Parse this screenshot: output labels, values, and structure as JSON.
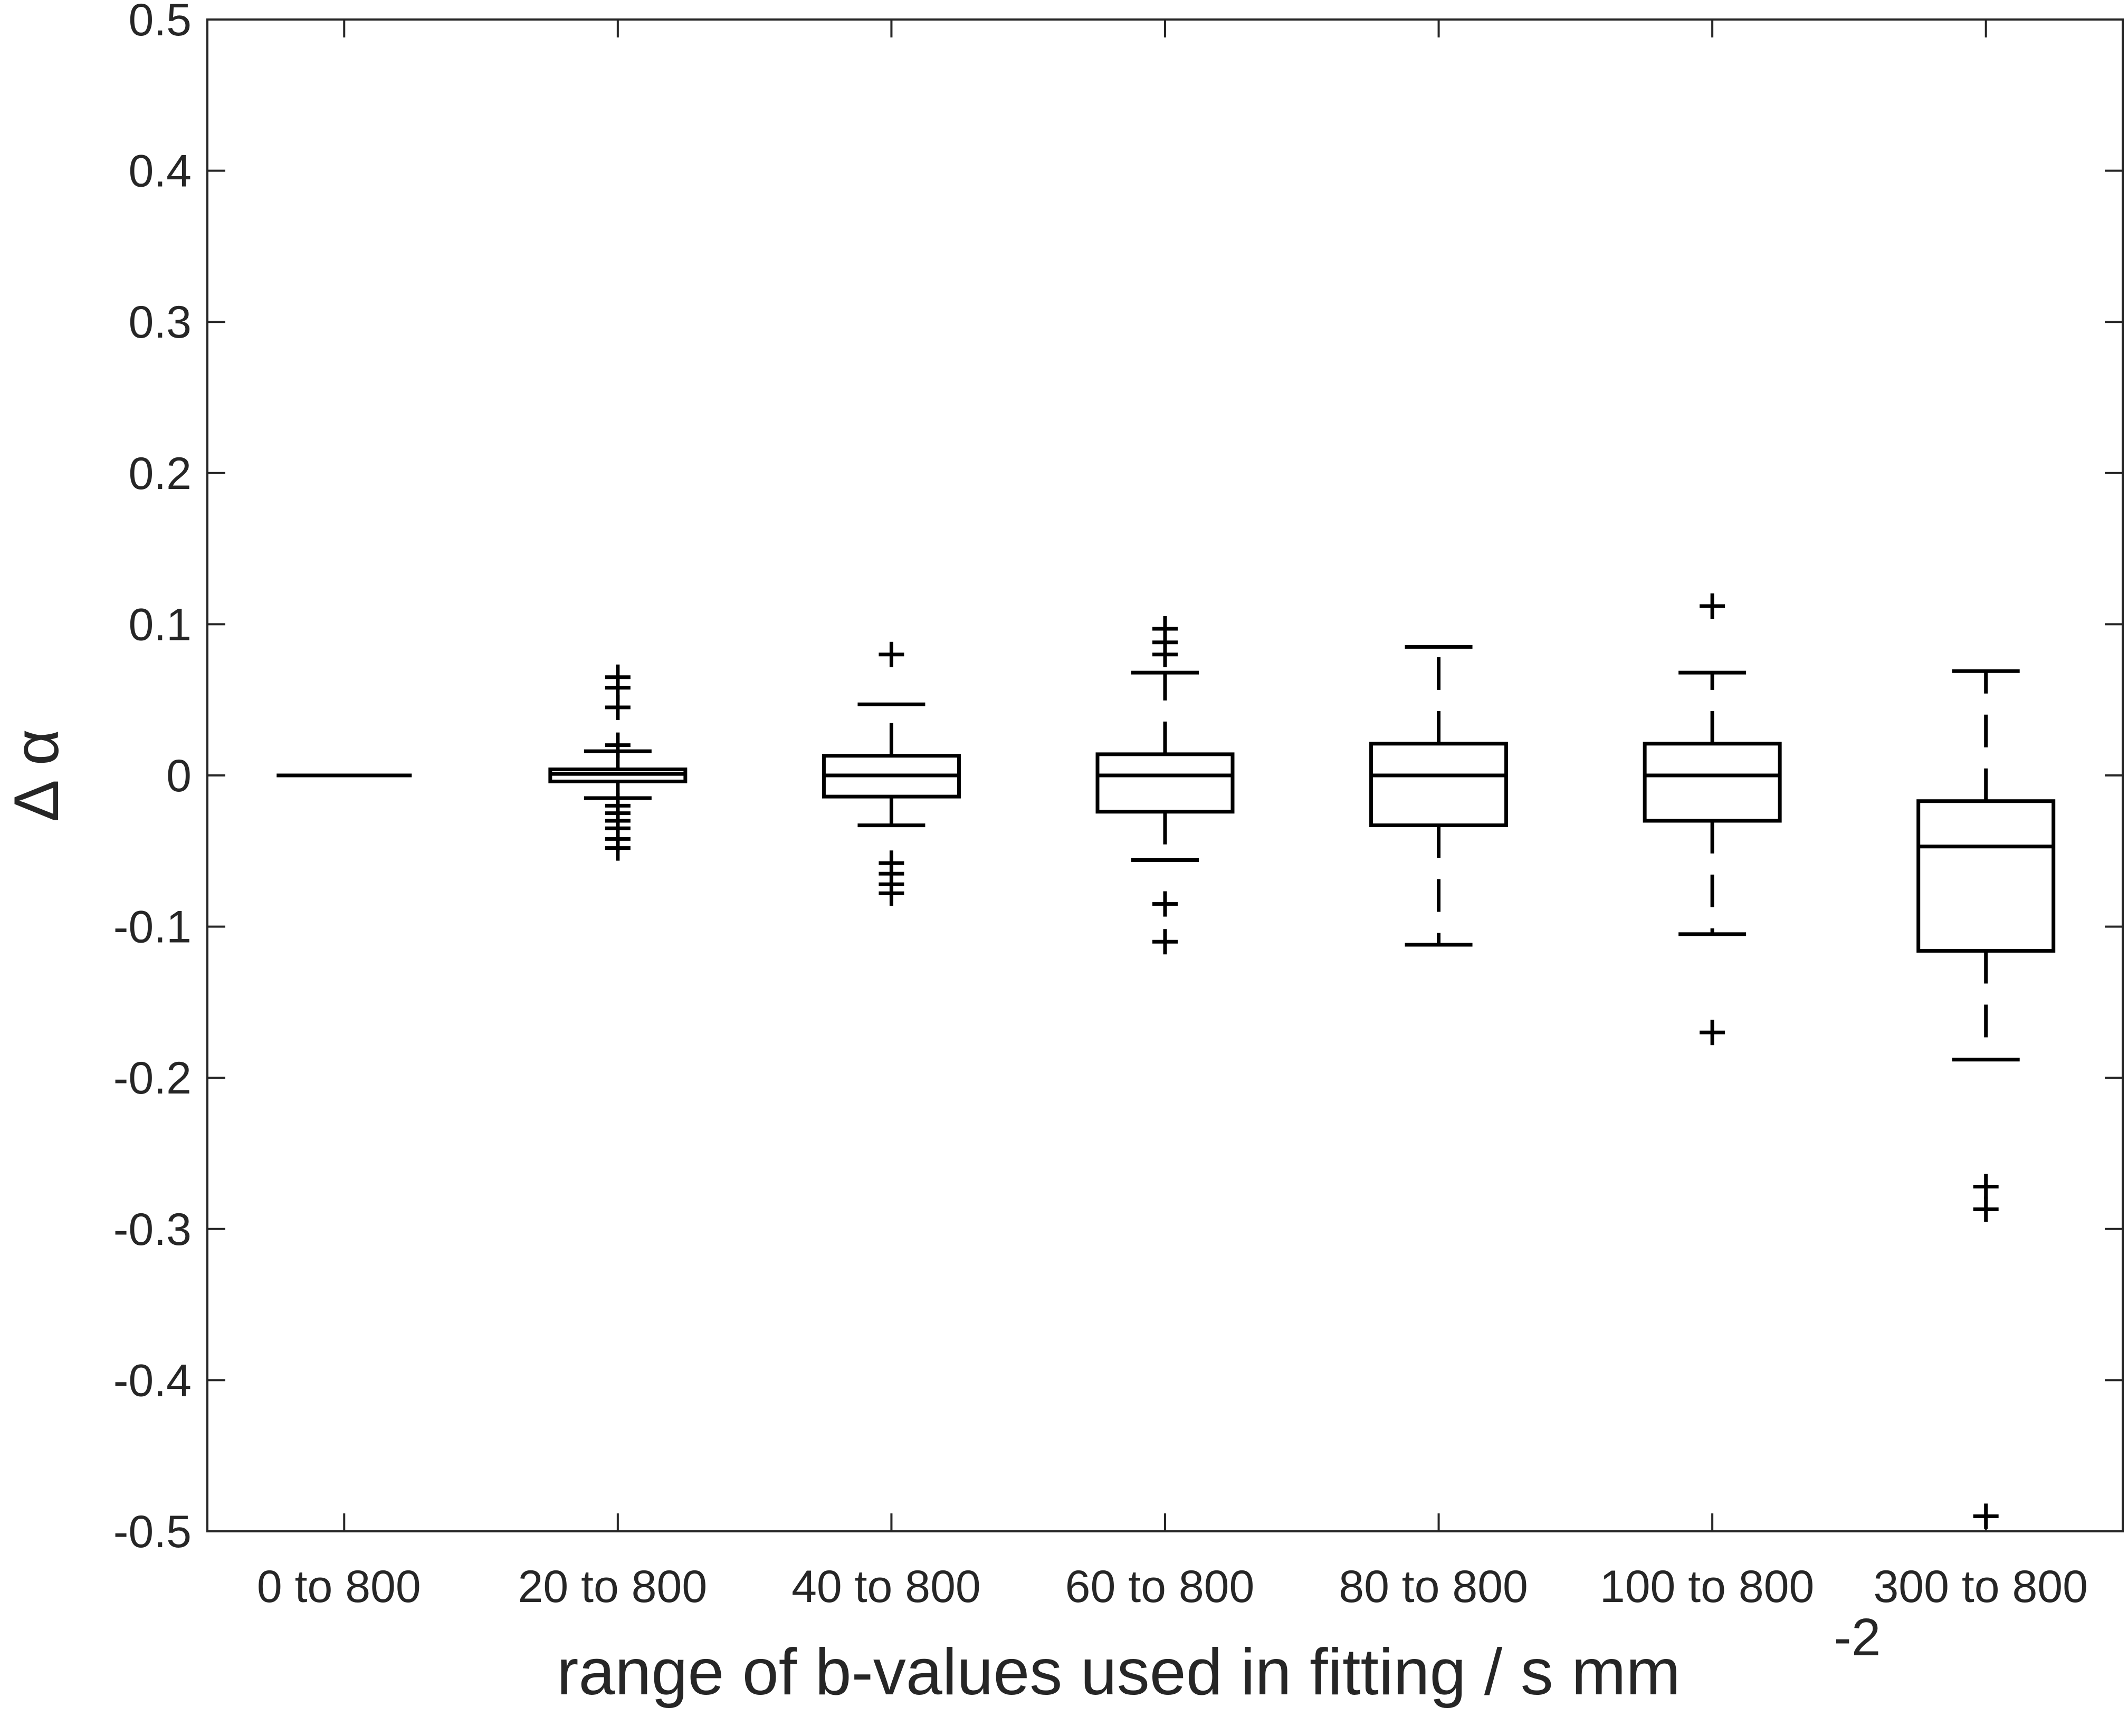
{
  "chart_data": {
    "type": "boxplot",
    "title": "",
    "xlabel": "range of b-values used in fitting / s mm",
    "xlabel_superscript": "-2",
    "ylabel": "Δ α",
    "ylim": [
      -0.5,
      0.5
    ],
    "yticks": [
      "0.5",
      "0.4",
      "0.3",
      "0.2",
      "0.1",
      "0",
      "-0.1",
      "-0.2",
      "-0.3",
      "-0.4",
      "-0.5"
    ],
    "categories": [
      "0 to 800",
      "20 to 800",
      "40 to 800",
      "60 to 800",
      "80 to 800",
      "100 to 800",
      "300 to 800"
    ],
    "series": [
      {
        "category": "0 to 800",
        "whisker_low": 0.0,
        "q1": 0.0,
        "median": 0.0,
        "q3": 0.0,
        "whisker_high": 0.0,
        "outliers": []
      },
      {
        "category": "20 to 800",
        "whisker_low": -0.015,
        "q1": -0.004,
        "median": 0.001,
        "q3": 0.004,
        "whisker_high": 0.016,
        "outliers": [
          0.065,
          0.058,
          0.045,
          0.02,
          -0.02,
          -0.025,
          -0.03,
          -0.035,
          -0.042,
          -0.048
        ]
      },
      {
        "category": "40 to 800",
        "whisker_low": -0.033,
        "q1": -0.014,
        "median": 0.0,
        "q3": 0.013,
        "whisker_high": 0.047,
        "outliers": [
          0.08,
          -0.058,
          -0.065,
          -0.072,
          -0.078
        ]
      },
      {
        "category": "60 to 800",
        "whisker_low": -0.056,
        "q1": -0.024,
        "median": 0.0,
        "q3": 0.014,
        "whisker_high": 0.068,
        "outliers": [
          0.097,
          0.088,
          0.08,
          -0.085,
          -0.11
        ]
      },
      {
        "category": "80 to 800",
        "whisker_low": -0.112,
        "q1": -0.033,
        "median": 0.0,
        "q3": 0.021,
        "whisker_high": 0.085,
        "outliers": []
      },
      {
        "category": "100 to 800",
        "whisker_low": -0.105,
        "q1": -0.03,
        "median": 0.0,
        "q3": 0.021,
        "whisker_high": 0.068,
        "outliers": [
          0.112,
          -0.17
        ]
      },
      {
        "category": "300 to 800",
        "whisker_low": -0.188,
        "q1": -0.116,
        "median": -0.047,
        "q3": -0.017,
        "whisker_high": 0.069,
        "outliers": [
          -0.272,
          -0.287,
          -0.49
        ]
      }
    ],
    "grid": false,
    "colors": {
      "box": "#000000",
      "axis": "#262626"
    }
  }
}
